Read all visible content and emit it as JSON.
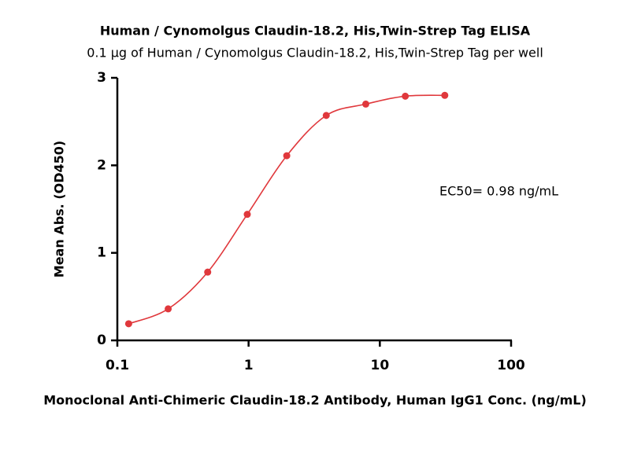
{
  "chart_data": {
    "type": "scatter",
    "title": "Human / Cynomolgus Claudin-18.2, His,Twin-Strep Tag ELISA",
    "subtitle": "0.1 µg of Human / Cynomolgus Claudin-18.2, His,Twin-Strep Tag per well",
    "x_label": "Monoclonal Anti-Chimeric Claudin-18.2 Antibody, Human IgG1 Conc. (ng/mL)",
    "y_label": "Mean Abs. (OD450)",
    "annotation": "EC50= 0.98 ng/mL",
    "x": [
      0.122,
      0.244,
      0.488,
      0.977,
      1.953,
      3.906,
      7.813,
      15.63,
      31.25
    ],
    "values": [
      0.19,
      0.36,
      0.78,
      1.44,
      2.11,
      2.57,
      2.7,
      2.79,
      2.8
    ],
    "color": "#e0383c",
    "xscale": "log",
    "xlim": [
      0.1,
      100
    ],
    "xticks": [
      0.1,
      1,
      10,
      100
    ],
    "ylim": [
      0,
      3
    ],
    "yticks": [
      0,
      1,
      2,
      3
    ],
    "fit_line": true
  }
}
